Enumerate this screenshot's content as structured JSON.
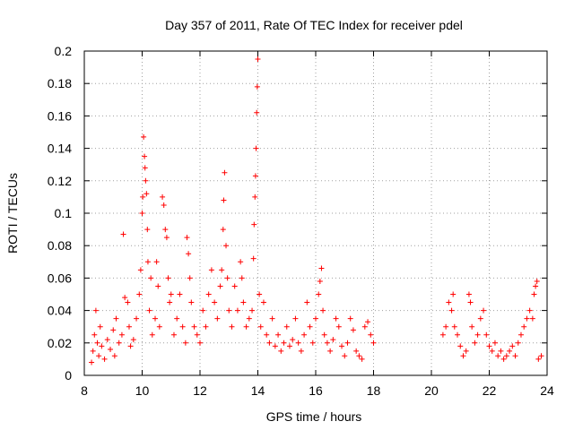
{
  "chart_data": {
    "type": "scatter",
    "title": "Day 357 of 2011, Rate Of TEC Index for receiver pdel",
    "xlabel": "GPS time / hours",
    "ylabel": "ROTI / TECUs",
    "xlim": [
      8,
      24
    ],
    "ylim": [
      0,
      0.2
    ],
    "xticks": [
      "8",
      "10",
      "12",
      "14",
      "16",
      "18",
      "20",
      "22",
      "24"
    ],
    "yticks": [
      "0",
      "0.02",
      "0.04",
      "0.06",
      "0.08",
      "0.1",
      "0.12",
      "0.14",
      "0.16",
      "0.18",
      "0.2"
    ],
    "grid": true,
    "marker": "+",
    "color": "#ff0000",
    "series": [
      {
        "name": "ROTI",
        "points": [
          [
            8.25,
            0.008
          ],
          [
            8.3,
            0.015
          ],
          [
            8.35,
            0.025
          ],
          [
            8.4,
            0.04
          ],
          [
            8.45,
            0.02
          ],
          [
            8.5,
            0.012
          ],
          [
            8.55,
            0.03
          ],
          [
            8.6,
            0.018
          ],
          [
            8.7,
            0.01
          ],
          [
            8.8,
            0.022
          ],
          [
            8.9,
            0.016
          ],
          [
            9.0,
            0.028
          ],
          [
            9.05,
            0.012
          ],
          [
            9.1,
            0.035
          ],
          [
            9.2,
            0.02
          ],
          [
            9.3,
            0.025
          ],
          [
            9.35,
            0.087
          ],
          [
            9.4,
            0.048
          ],
          [
            9.5,
            0.045
          ],
          [
            9.55,
            0.03
          ],
          [
            9.6,
            0.018
          ],
          [
            9.7,
            0.022
          ],
          [
            9.8,
            0.035
          ],
          [
            9.9,
            0.05
          ],
          [
            9.95,
            0.065
          ],
          [
            10.0,
            0.1
          ],
          [
            10.02,
            0.11
          ],
          [
            10.05,
            0.147
          ],
          [
            10.08,
            0.135
          ],
          [
            10.1,
            0.128
          ],
          [
            10.12,
            0.12
          ],
          [
            10.15,
            0.112
          ],
          [
            10.18,
            0.09
          ],
          [
            10.2,
            0.07
          ],
          [
            10.25,
            0.04
          ],
          [
            10.3,
            0.06
          ],
          [
            10.35,
            0.025
          ],
          [
            10.45,
            0.035
          ],
          [
            10.5,
            0.07
          ],
          [
            10.55,
            0.055
          ],
          [
            10.6,
            0.03
          ],
          [
            10.7,
            0.11
          ],
          [
            10.75,
            0.105
          ],
          [
            10.8,
            0.09
          ],
          [
            10.85,
            0.085
          ],
          [
            10.9,
            0.06
          ],
          [
            10.95,
            0.045
          ],
          [
            11.0,
            0.05
          ],
          [
            11.1,
            0.025
          ],
          [
            11.2,
            0.035
          ],
          [
            11.3,
            0.05
          ],
          [
            11.4,
            0.03
          ],
          [
            11.5,
            0.02
          ],
          [
            11.55,
            0.085
          ],
          [
            11.6,
            0.075
          ],
          [
            11.65,
            0.06
          ],
          [
            11.7,
            0.045
          ],
          [
            11.8,
            0.03
          ],
          [
            11.9,
            0.025
          ],
          [
            12.0,
            0.02
          ],
          [
            12.1,
            0.04
          ],
          [
            12.2,
            0.03
          ],
          [
            12.3,
            0.05
          ],
          [
            12.4,
            0.065
          ],
          [
            12.5,
            0.045
          ],
          [
            12.6,
            0.035
          ],
          [
            12.7,
            0.055
          ],
          [
            12.75,
            0.065
          ],
          [
            12.8,
            0.09
          ],
          [
            12.82,
            0.108
          ],
          [
            12.85,
            0.125
          ],
          [
            12.9,
            0.08
          ],
          [
            12.95,
            0.06
          ],
          [
            13.0,
            0.04
          ],
          [
            13.1,
            0.03
          ],
          [
            13.2,
            0.055
          ],
          [
            13.3,
            0.04
          ],
          [
            13.4,
            0.07
          ],
          [
            13.45,
            0.06
          ],
          [
            13.5,
            0.045
          ],
          [
            13.6,
            0.03
          ],
          [
            13.7,
            0.035
          ],
          [
            13.8,
            0.04
          ],
          [
            13.85,
            0.072
          ],
          [
            13.87,
            0.093
          ],
          [
            13.9,
            0.11
          ],
          [
            13.92,
            0.123
          ],
          [
            13.94,
            0.14
          ],
          [
            13.96,
            0.162
          ],
          [
            13.98,
            0.178
          ],
          [
            14.0,
            0.195
          ],
          [
            14.05,
            0.05
          ],
          [
            14.1,
            0.03
          ],
          [
            14.2,
            0.045
          ],
          [
            14.3,
            0.025
          ],
          [
            14.4,
            0.02
          ],
          [
            14.5,
            0.035
          ],
          [
            14.6,
            0.018
          ],
          [
            14.7,
            0.025
          ],
          [
            14.8,
            0.015
          ],
          [
            14.9,
            0.02
          ],
          [
            15.0,
            0.03
          ],
          [
            15.1,
            0.018
          ],
          [
            15.2,
            0.022
          ],
          [
            15.3,
            0.035
          ],
          [
            15.4,
            0.02
          ],
          [
            15.5,
            0.015
          ],
          [
            15.6,
            0.025
          ],
          [
            15.7,
            0.045
          ],
          [
            15.8,
            0.03
          ],
          [
            15.9,
            0.02
          ],
          [
            16.0,
            0.035
          ],
          [
            16.1,
            0.05
          ],
          [
            16.15,
            0.058
          ],
          [
            16.2,
            0.066
          ],
          [
            16.25,
            0.04
          ],
          [
            16.3,
            0.025
          ],
          [
            16.4,
            0.02
          ],
          [
            16.5,
            0.015
          ],
          [
            16.6,
            0.022
          ],
          [
            16.7,
            0.035
          ],
          [
            16.8,
            0.03
          ],
          [
            16.9,
            0.018
          ],
          [
            17.0,
            0.012
          ],
          [
            17.1,
            0.02
          ],
          [
            17.2,
            0.035
          ],
          [
            17.3,
            0.028
          ],
          [
            17.4,
            0.015
          ],
          [
            17.5,
            0.012
          ],
          [
            17.6,
            0.01
          ],
          [
            17.7,
            0.03
          ],
          [
            17.8,
            0.033
          ],
          [
            17.9,
            0.025
          ],
          [
            18.0,
            0.02
          ],
          [
            20.4,
            0.025
          ],
          [
            20.5,
            0.03
          ],
          [
            20.6,
            0.045
          ],
          [
            20.7,
            0.04
          ],
          [
            20.75,
            0.05
          ],
          [
            20.8,
            0.03
          ],
          [
            20.9,
            0.025
          ],
          [
            21.0,
            0.018
          ],
          [
            21.1,
            0.012
          ],
          [
            21.2,
            0.015
          ],
          [
            21.3,
            0.05
          ],
          [
            21.35,
            0.045
          ],
          [
            21.4,
            0.03
          ],
          [
            21.5,
            0.02
          ],
          [
            21.6,
            0.025
          ],
          [
            21.7,
            0.035
          ],
          [
            21.8,
            0.04
          ],
          [
            21.9,
            0.025
          ],
          [
            22.0,
            0.018
          ],
          [
            22.1,
            0.015
          ],
          [
            22.2,
            0.02
          ],
          [
            22.3,
            0.012
          ],
          [
            22.4,
            0.015
          ],
          [
            22.5,
            0.01
          ],
          [
            22.6,
            0.012
          ],
          [
            22.7,
            0.015
          ],
          [
            22.8,
            0.018
          ],
          [
            22.9,
            0.012
          ],
          [
            23.0,
            0.02
          ],
          [
            23.1,
            0.025
          ],
          [
            23.2,
            0.03
          ],
          [
            23.3,
            0.035
          ],
          [
            23.4,
            0.04
          ],
          [
            23.5,
            0.035
          ],
          [
            23.55,
            0.05
          ],
          [
            23.6,
            0.055
          ],
          [
            23.65,
            0.058
          ],
          [
            23.7,
            0.01
          ],
          [
            23.8,
            0.012
          ]
        ]
      }
    ]
  }
}
